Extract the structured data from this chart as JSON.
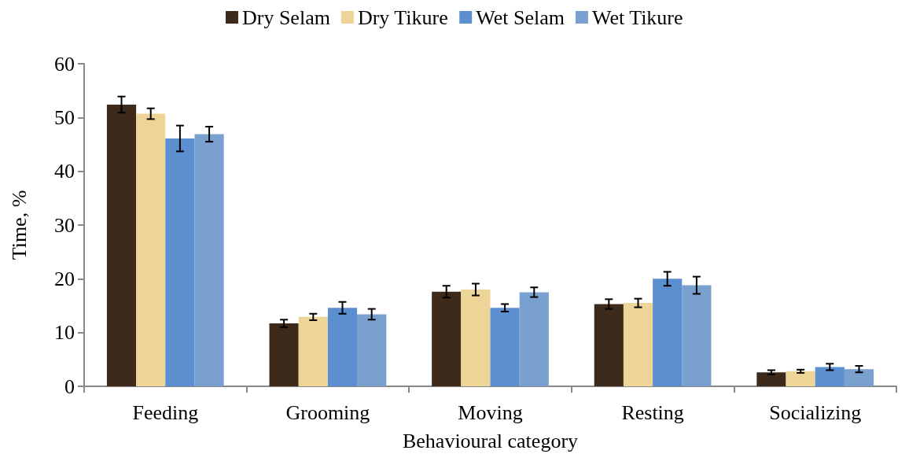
{
  "chart_data": {
    "type": "bar",
    "xlabel": "Behavioural category",
    "ylabel": "Time, %",
    "categories": [
      "Feeding",
      "Grooming",
      "Moving",
      "Resting",
      "Socializing"
    ],
    "series": [
      {
        "name": "Dry Selam",
        "color": "#3d2a1a",
        "values": [
          52.4,
          11.7,
          17.6,
          15.3,
          2.6
        ],
        "errors": [
          1.5,
          0.7,
          1.1,
          0.9,
          0.4
        ]
      },
      {
        "name": "Dry Tikure",
        "color": "#edd598",
        "values": [
          50.7,
          12.9,
          18.0,
          15.5,
          2.8
        ],
        "errors": [
          1.0,
          0.6,
          1.1,
          0.8,
          0.3
        ]
      },
      {
        "name": "Wet Selam",
        "color": "#5b8fd0",
        "values": [
          46.1,
          14.6,
          14.6,
          20.0,
          3.6
        ],
        "errors": [
          2.4,
          1.1,
          0.7,
          1.3,
          0.6
        ]
      },
      {
        "name": "Wet Tikure",
        "color": "#7aa0d0",
        "values": [
          46.9,
          13.4,
          17.5,
          18.8,
          3.2
        ],
        "errors": [
          1.4,
          1.0,
          0.9,
          1.6,
          0.6
        ]
      }
    ],
    "ylim": [
      0,
      60
    ],
    "yticks": [
      0,
      10,
      20,
      30,
      40,
      50,
      60
    ],
    "grid": false,
    "legend": "top"
  }
}
